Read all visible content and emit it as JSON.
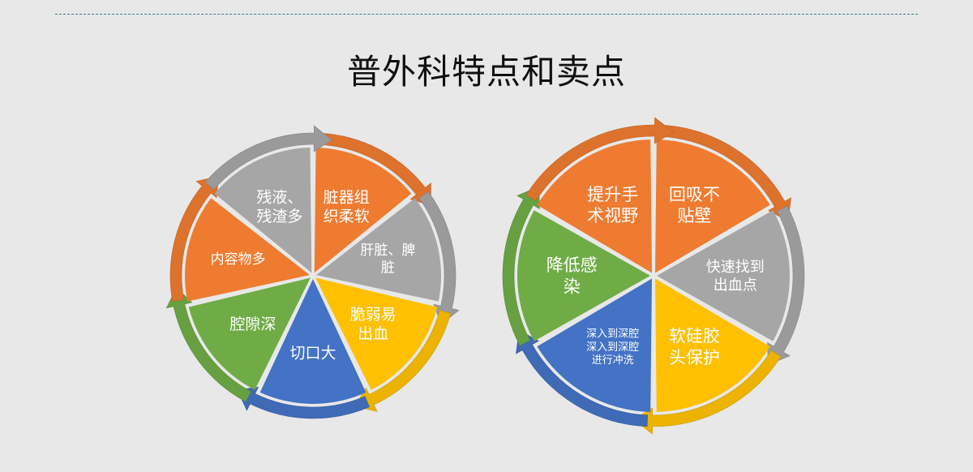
{
  "title": "普外科特点和卖点",
  "colors": {
    "orange": "#ee7b30",
    "gray": "#a6a6a6",
    "yellow": "#fec000",
    "blue": "#4472c4",
    "green": "#6fac46",
    "background": "#e8e8e8",
    "rule": "#2f7f8f"
  },
  "left_cycle": {
    "segments": [
      {
        "lines": [
          "脏器组",
          "织柔软"
        ],
        "color": "orange"
      },
      {
        "lines": [
          "肝脏、脾",
          "脏"
        ],
        "color": "gray"
      },
      {
        "lines": [
          "脆弱易",
          "出血"
        ],
        "color": "yellow"
      },
      {
        "lines": [
          "切口大"
        ],
        "color": "blue"
      },
      {
        "lines": [
          "腔隙深"
        ],
        "color": "green"
      },
      {
        "lines": [
          "内容物多"
        ],
        "color": "orange"
      },
      {
        "lines": [
          "残液、",
          "残渣多"
        ],
        "color": "gray"
      }
    ]
  },
  "right_cycle": {
    "segments": [
      {
        "lines": [
          "回吸不",
          "贴壁"
        ],
        "color": "orange"
      },
      {
        "lines": [
          "快速找到",
          "出血点"
        ],
        "color": "gray"
      },
      {
        "lines": [
          "软硅胶",
          "头保护"
        ],
        "color": "yellow"
      },
      {
        "lines": [
          "深入到深腔",
          "深入到深腔",
          "进行冲洗"
        ],
        "color": "blue"
      },
      {
        "lines": [
          "降低感",
          "染"
        ],
        "color": "green"
      },
      {
        "lines": [
          "提升手",
          "术视野"
        ],
        "color": "orange"
      }
    ]
  }
}
